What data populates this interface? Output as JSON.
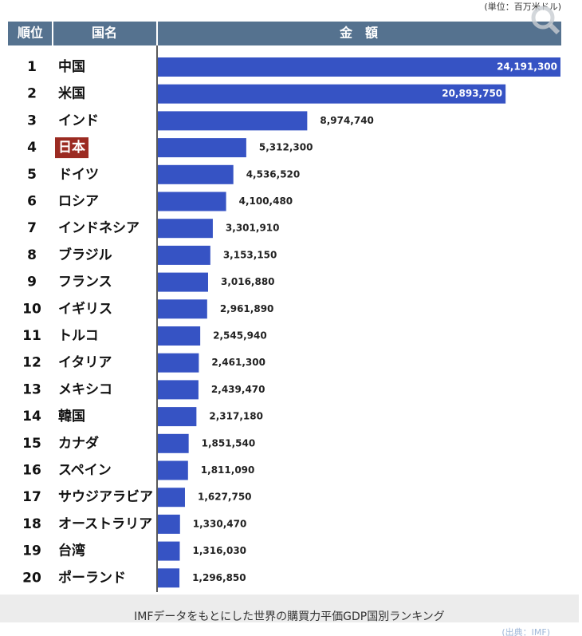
{
  "unit_note": "(単位：百万米ドル)",
  "headers": [
    "順位",
    "国名",
    "金　額"
  ],
  "chart_data": {
    "type": "bar",
    "orientation": "horizontal",
    "color": "#3653c4",
    "highlight": 3,
    "highlight_color": "#9b2b22",
    "ranks": [
      1,
      2,
      3,
      4,
      5,
      6,
      7,
      8,
      9,
      10,
      11,
      12,
      13,
      14,
      15,
      16,
      17,
      18,
      19,
      20
    ],
    "categories": [
      "中国",
      "米国",
      "インド",
      "日本",
      "ドイツ",
      "ロシア",
      "インドネシア",
      "ブラジル",
      "フランス",
      "イギリス",
      "トルコ",
      "イタリア",
      "メキシコ",
      "韓国",
      "カナダ",
      "スペイン",
      "サウジアラビア",
      "オーストラリア",
      "台湾",
      "ポーランド"
    ],
    "values": [
      24191300,
      20893750,
      8974740,
      5312300,
      4536520,
      4100480,
      3301910,
      3153150,
      3016880,
      2961890,
      2545940,
      2461300,
      2439470,
      2317180,
      1851540,
      1811090,
      1627750,
      1330470,
      1316030,
      1296850
    ],
    "value_labels": [
      "24,191,300",
      "20,893,750",
      "8,974,740",
      "5,312,300",
      "4,536,520",
      "4,100,480",
      "3,301,910",
      "3,153,150",
      "3,016,880",
      "2,961,890",
      "2,545,940",
      "2,461,300",
      "2,439,470",
      "2,317,180",
      "1,851,540",
      "1,811,090",
      "1,627,750",
      "1,330,470",
      "1,316,030",
      "1,296,850"
    ]
  },
  "caption": "IMFデータをもとにした世界の購買力平価GDP国別ランキング",
  "source": "(出典：IMF)"
}
